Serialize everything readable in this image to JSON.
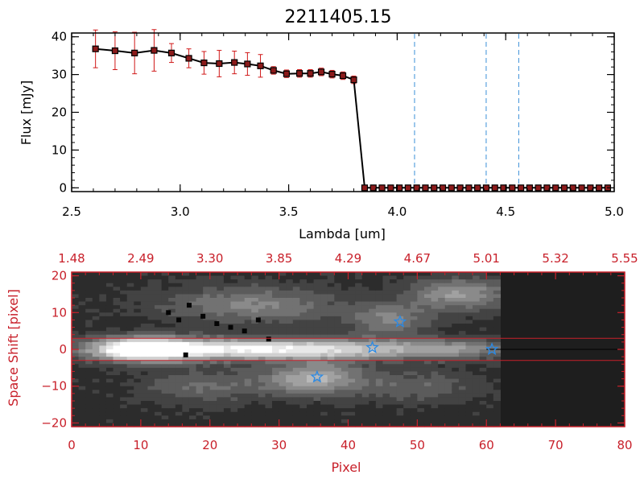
{
  "title": "2211405.15",
  "colors": {
    "axis_top": "#000000",
    "axis_bottom": "#c8202a",
    "spectrum_line": "#000000",
    "marker": "#000000",
    "marker_fill": "#8b1a1a",
    "errorbar": "#d01818",
    "vline": "#3a8fd8",
    "star": "#2a8ae6",
    "trace_lines": "#c8202a",
    "image_bg": "#1e1e1e"
  },
  "chart_data": [
    {
      "type": "line",
      "name": "spectrum",
      "title": "2211405.15",
      "xlabel": "Lambda [um]",
      "ylabel": "Flux [mJy]",
      "xlim": [
        2.5,
        5.0
      ],
      "ylim": [
        -1,
        41
      ],
      "xticks": [
        2.5,
        3.0,
        3.5,
        4.0,
        4.5,
        5.0
      ],
      "xtick_labels": [
        "2.5",
        "3.0",
        "3.5",
        "4.0",
        "4.5",
        "5.0"
      ],
      "yticks": [
        0,
        10,
        20,
        30,
        40
      ],
      "ytick_labels": [
        "0",
        "10",
        "20",
        "30",
        "40"
      ],
      "x": [
        2.61,
        2.7,
        2.79,
        2.88,
        2.96,
        3.04,
        3.11,
        3.18,
        3.25,
        3.31,
        3.37,
        3.43,
        3.49,
        3.55,
        3.6,
        3.65,
        3.7,
        3.75,
        3.8,
        3.85,
        3.89,
        3.93,
        3.97,
        4.01,
        4.05,
        4.09,
        4.13,
        4.17,
        4.21,
        4.25,
        4.29,
        4.33,
        4.37,
        4.41,
        4.45,
        4.49,
        4.53,
        4.57,
        4.61,
        4.65,
        4.69,
        4.73,
        4.77,
        4.81,
        4.85,
        4.89,
        4.93,
        4.97
      ],
      "y": [
        36.8,
        36.3,
        35.7,
        36.4,
        35.7,
        34.3,
        33.1,
        32.9,
        33.2,
        32.8,
        32.3,
        31.1,
        30.2,
        30.3,
        30.3,
        30.7,
        30.1,
        29.7,
        28.6,
        0,
        0,
        0,
        0,
        0,
        0,
        0,
        0,
        0,
        0,
        0,
        0,
        0,
        0,
        0,
        0,
        0,
        0,
        0,
        0,
        0,
        0,
        0,
        0,
        0,
        0,
        0,
        0,
        0
      ],
      "yerr": [
        5,
        5,
        5.5,
        5.5,
        2.5,
        2.5,
        3,
        3.5,
        3,
        3,
        3,
        1,
        1,
        1,
        1,
        1,
        1,
        1,
        1,
        0,
        0,
        0,
        0,
        0,
        0,
        0,
        0,
        0,
        0,
        0,
        0,
        0,
        0,
        0,
        0,
        0,
        0,
        0,
        0,
        0,
        0,
        0,
        0,
        0,
        0,
        0,
        0,
        0
      ],
      "vlines": [
        4.08,
        4.41,
        4.56
      ],
      "grid": false
    },
    {
      "type": "heatmap",
      "name": "2d-spectrum",
      "xlabel": "Pixel",
      "ylabel": "Space Shift [pixel]",
      "xlim": [
        0,
        80
      ],
      "ylim": [
        -21,
        21
      ],
      "xticks": [
        0,
        10,
        20,
        30,
        40,
        50,
        60,
        70,
        80
      ],
      "xtick_labels": [
        "0",
        "10",
        "20",
        "30",
        "40",
        "50",
        "60",
        "70",
        "80"
      ],
      "yticks": [
        -20,
        -10,
        0,
        10,
        20
      ],
      "ytick_labels": [
        "−20",
        "−10",
        "0",
        "10",
        "20"
      ],
      "top_axis_positions": [
        0,
        10,
        20,
        30,
        40,
        50,
        60,
        70,
        80
      ],
      "top_axis_labels": [
        "1.48",
        "2.49",
        "3.30",
        "3.85",
        "4.29",
        "4.67",
        "5.01",
        "5.32",
        "5.55"
      ],
      "data_extent_pixel": 62,
      "trace_lines": [
        3,
        -3
      ],
      "center_line": 0,
      "stars": [
        {
          "x": 35.5,
          "y": -7.5
        },
        {
          "x": 43.5,
          "y": 0.5
        },
        {
          "x": 47.5,
          "y": 7.5
        },
        {
          "x": 60.8,
          "y": 0
        }
      ],
      "blobs": [
        {
          "x": 10,
          "y": 0,
          "sx": 5,
          "sy": 2.2,
          "a": 1.0
        },
        {
          "x": 22,
          "y": 0,
          "sx": 10,
          "sy": 2.0,
          "a": 0.75
        },
        {
          "x": 40,
          "y": 0,
          "sx": 9,
          "sy": 2.0,
          "a": 0.55
        },
        {
          "x": 56,
          "y": 0,
          "sx": 6,
          "sy": 1.8,
          "a": 0.35
        },
        {
          "x": 35,
          "y": -8,
          "sx": 5,
          "sy": 3,
          "a": 0.55
        },
        {
          "x": 26,
          "y": 12,
          "sx": 9,
          "sy": 3.5,
          "a": 0.35
        },
        {
          "x": 46,
          "y": 8,
          "sx": 4,
          "sy": 3,
          "a": 0.35
        },
        {
          "x": 56,
          "y": 15,
          "sx": 5,
          "sy": 3,
          "a": 0.45
        },
        {
          "x": 19,
          "y": -10,
          "sx": 6,
          "sy": 3,
          "a": 0.25
        },
        {
          "x": 50,
          "y": -10,
          "sx": 6,
          "sy": 3,
          "a": 0.22
        }
      ],
      "dark_dots": [
        [
          16.5,
          -1.5
        ],
        [
          28.5,
          2.8
        ],
        [
          14,
          10
        ],
        [
          15.5,
          8
        ],
        [
          17,
          12
        ],
        [
          19,
          9
        ],
        [
          21,
          7
        ],
        [
          23,
          6
        ],
        [
          25,
          5
        ],
        [
          27,
          8
        ]
      ]
    }
  ]
}
